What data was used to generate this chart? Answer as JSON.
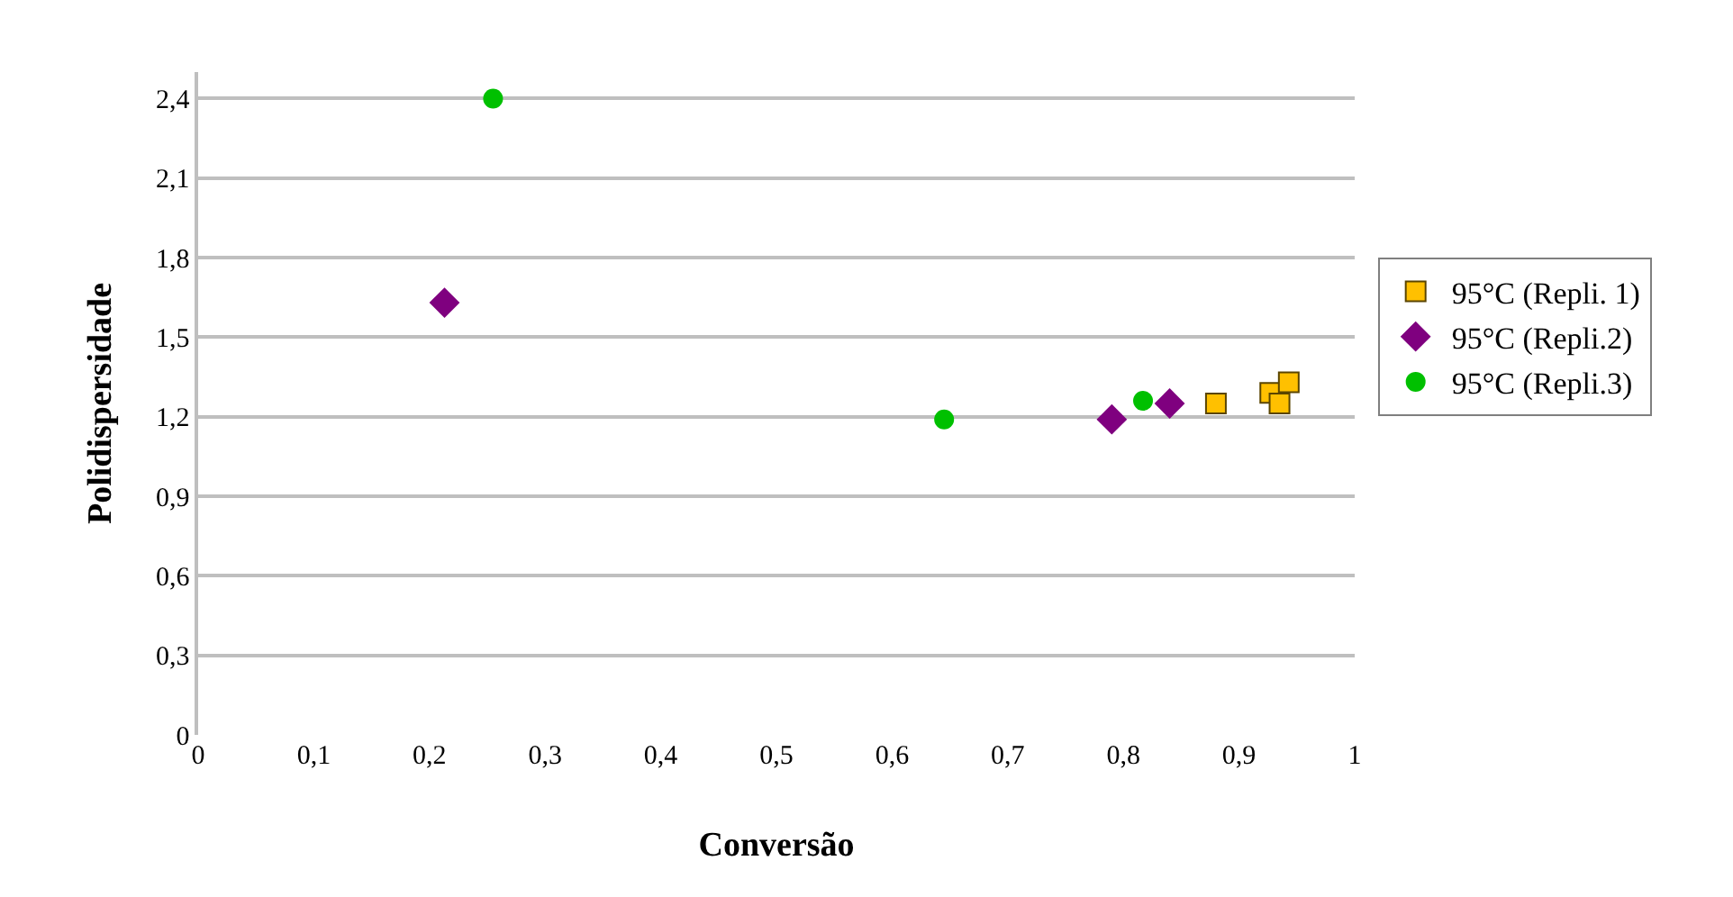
{
  "chart_data": {
    "type": "scatter",
    "xlabel": "Conversão",
    "ylabel": "Polidispersidade",
    "xlim": [
      0,
      1
    ],
    "xticks": [
      {
        "value": 0,
        "label": "0"
      },
      {
        "value": 0.1,
        "label": "0,1"
      },
      {
        "value": 0.2,
        "label": "0,2"
      },
      {
        "value": 0.3,
        "label": "0,3"
      },
      {
        "value": 0.4,
        "label": "0,4"
      },
      {
        "value": 0.5,
        "label": "0,5"
      },
      {
        "value": 0.6,
        "label": "0,6"
      },
      {
        "value": 0.7,
        "label": "0,7"
      },
      {
        "value": 0.8,
        "label": "0,8"
      },
      {
        "value": 0.9,
        "label": "0,9"
      },
      {
        "value": 1,
        "label": "1"
      }
    ],
    "ylim": [
      0,
      2.5
    ],
    "yticks": [
      {
        "value": 0,
        "label": "0"
      },
      {
        "value": 0.3,
        "label": "0,3"
      },
      {
        "value": 0.6,
        "label": "0,6"
      },
      {
        "value": 0.9,
        "label": "0,9"
      },
      {
        "value": 1.2,
        "label": "1,2"
      },
      {
        "value": 1.5,
        "label": "1,5"
      },
      {
        "value": 1.8,
        "label": "1,8"
      },
      {
        "value": 2.1,
        "label": "2,1"
      },
      {
        "value": 2.4,
        "label": "2,4"
      }
    ],
    "grid": "y",
    "legend": "right",
    "series": [
      {
        "name": "95°C (Repli. 1)",
        "color": "#ffc000",
        "marker": "square",
        "x": [
          0.88,
          0.927,
          0.935,
          0.943
        ],
        "values": [
          1.25,
          1.29,
          1.25,
          1.33
        ]
      },
      {
        "name": "95°C (Repli.2)",
        "color": "#7f007f",
        "marker": "diamond",
        "x": [
          0.213,
          0.79,
          0.84
        ],
        "values": [
          1.63,
          1.19,
          1.25
        ]
      },
      {
        "name": "95°C (Repli.3)",
        "color": "#00c000",
        "marker": "circle",
        "x": [
          0.255,
          0.645,
          0.817
        ],
        "values": [
          2.4,
          1.19,
          1.26
        ]
      }
    ]
  }
}
